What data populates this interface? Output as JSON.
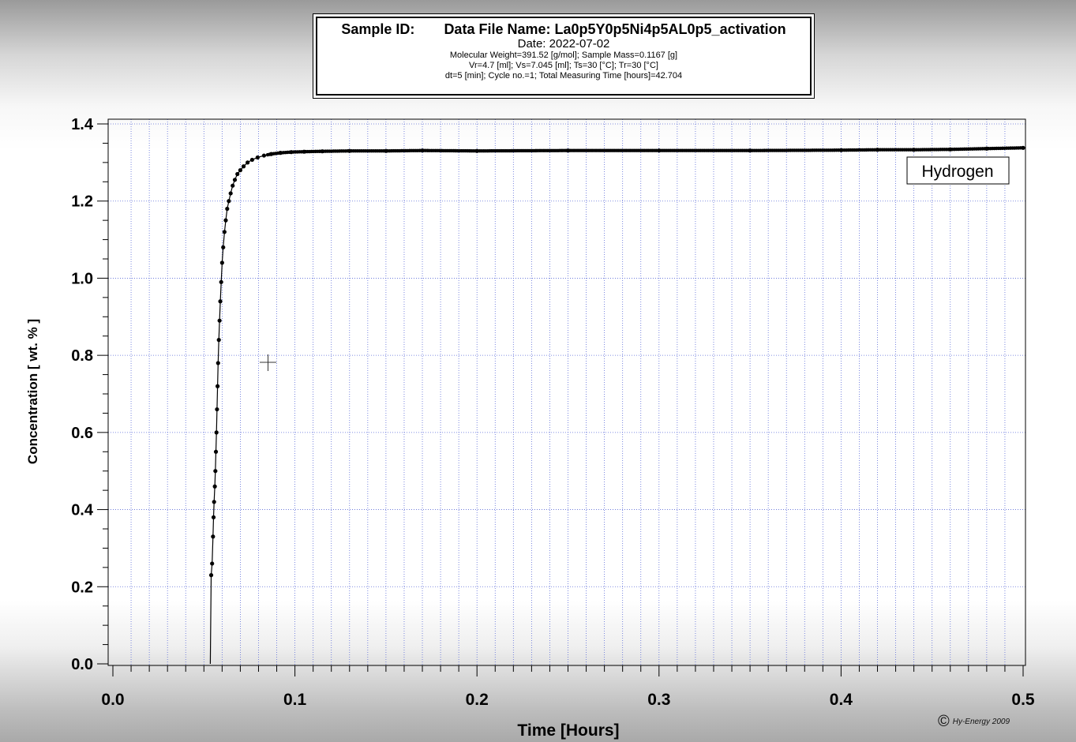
{
  "header": {
    "sample_id_label": "Sample ID:",
    "data_file_label": "Data File Name: La0p5Y0p5Ni4p5AL0p5_activation",
    "date": "Date:  2022-07-02",
    "line_weight": "Molecular Weight=391.52 [g/mol]; Sample Mass=0.1167 [g]",
    "line_volumes": "Vr=4.7 [ml]; Vs=7.045 [ml];  Ts=30 [°C]; Tr=30 [°C]",
    "line_cycle": "dt=5 [min];  Cycle no.=1;  Total Measuring Time [hours]=42.704"
  },
  "chart_data": {
    "type": "line",
    "xlabel": "Time [Hours]",
    "ylabel": "Concentration [ wt. % ]",
    "xlim": [
      0.0,
      0.5
    ],
    "ylim": [
      0.0,
      1.4
    ],
    "x_ticks": [
      "0.0",
      "0.1",
      "0.2",
      "0.3",
      "0.4",
      "0.5"
    ],
    "y_ticks": [
      "0.0",
      "0.2",
      "0.4",
      "0.6",
      "0.8",
      "1.0",
      "1.2",
      "1.4"
    ],
    "grid": true,
    "legend_placement": "top-right",
    "series": [
      {
        "name": "Hydrogen",
        "marker": "dot",
        "color": "#000000",
        "x": [
          0.0535,
          0.054,
          0.0545,
          0.055,
          0.0553,
          0.0556,
          0.056,
          0.0563,
          0.0566,
          0.0569,
          0.0572,
          0.0575,
          0.0578,
          0.0582,
          0.0586,
          0.059,
          0.0595,
          0.06,
          0.0606,
          0.0613,
          0.062,
          0.0628,
          0.0637,
          0.0647,
          0.0658,
          0.067,
          0.0684,
          0.07,
          0.0718,
          0.074,
          0.0765,
          0.0795,
          0.083,
          0.087,
          0.092,
          0.098,
          0.105,
          0.115,
          0.13,
          0.15,
          0.17,
          0.2,
          0.25,
          0.3,
          0.35,
          0.4,
          0.42,
          0.44,
          0.46,
          0.48,
          0.5
        ],
        "y": [
          0.0,
          0.23,
          0.26,
          0.33,
          0.38,
          0.42,
          0.46,
          0.5,
          0.55,
          0.6,
          0.66,
          0.72,
          0.78,
          0.84,
          0.89,
          0.94,
          0.99,
          1.04,
          1.08,
          1.12,
          1.15,
          1.18,
          1.2,
          1.22,
          1.24,
          1.255,
          1.27,
          1.28,
          1.29,
          1.3,
          1.307,
          1.313,
          1.318,
          1.322,
          1.325,
          1.327,
          1.328,
          1.329,
          1.33,
          1.33,
          1.331,
          1.33,
          1.331,
          1.331,
          1.331,
          1.332,
          1.333,
          1.333,
          1.334,
          1.336,
          1.338
        ]
      }
    ],
    "legend": [
      "Hydrogen"
    ]
  },
  "copyright": {
    "symbol": "©",
    "text": "Hy-Energy 2009"
  }
}
